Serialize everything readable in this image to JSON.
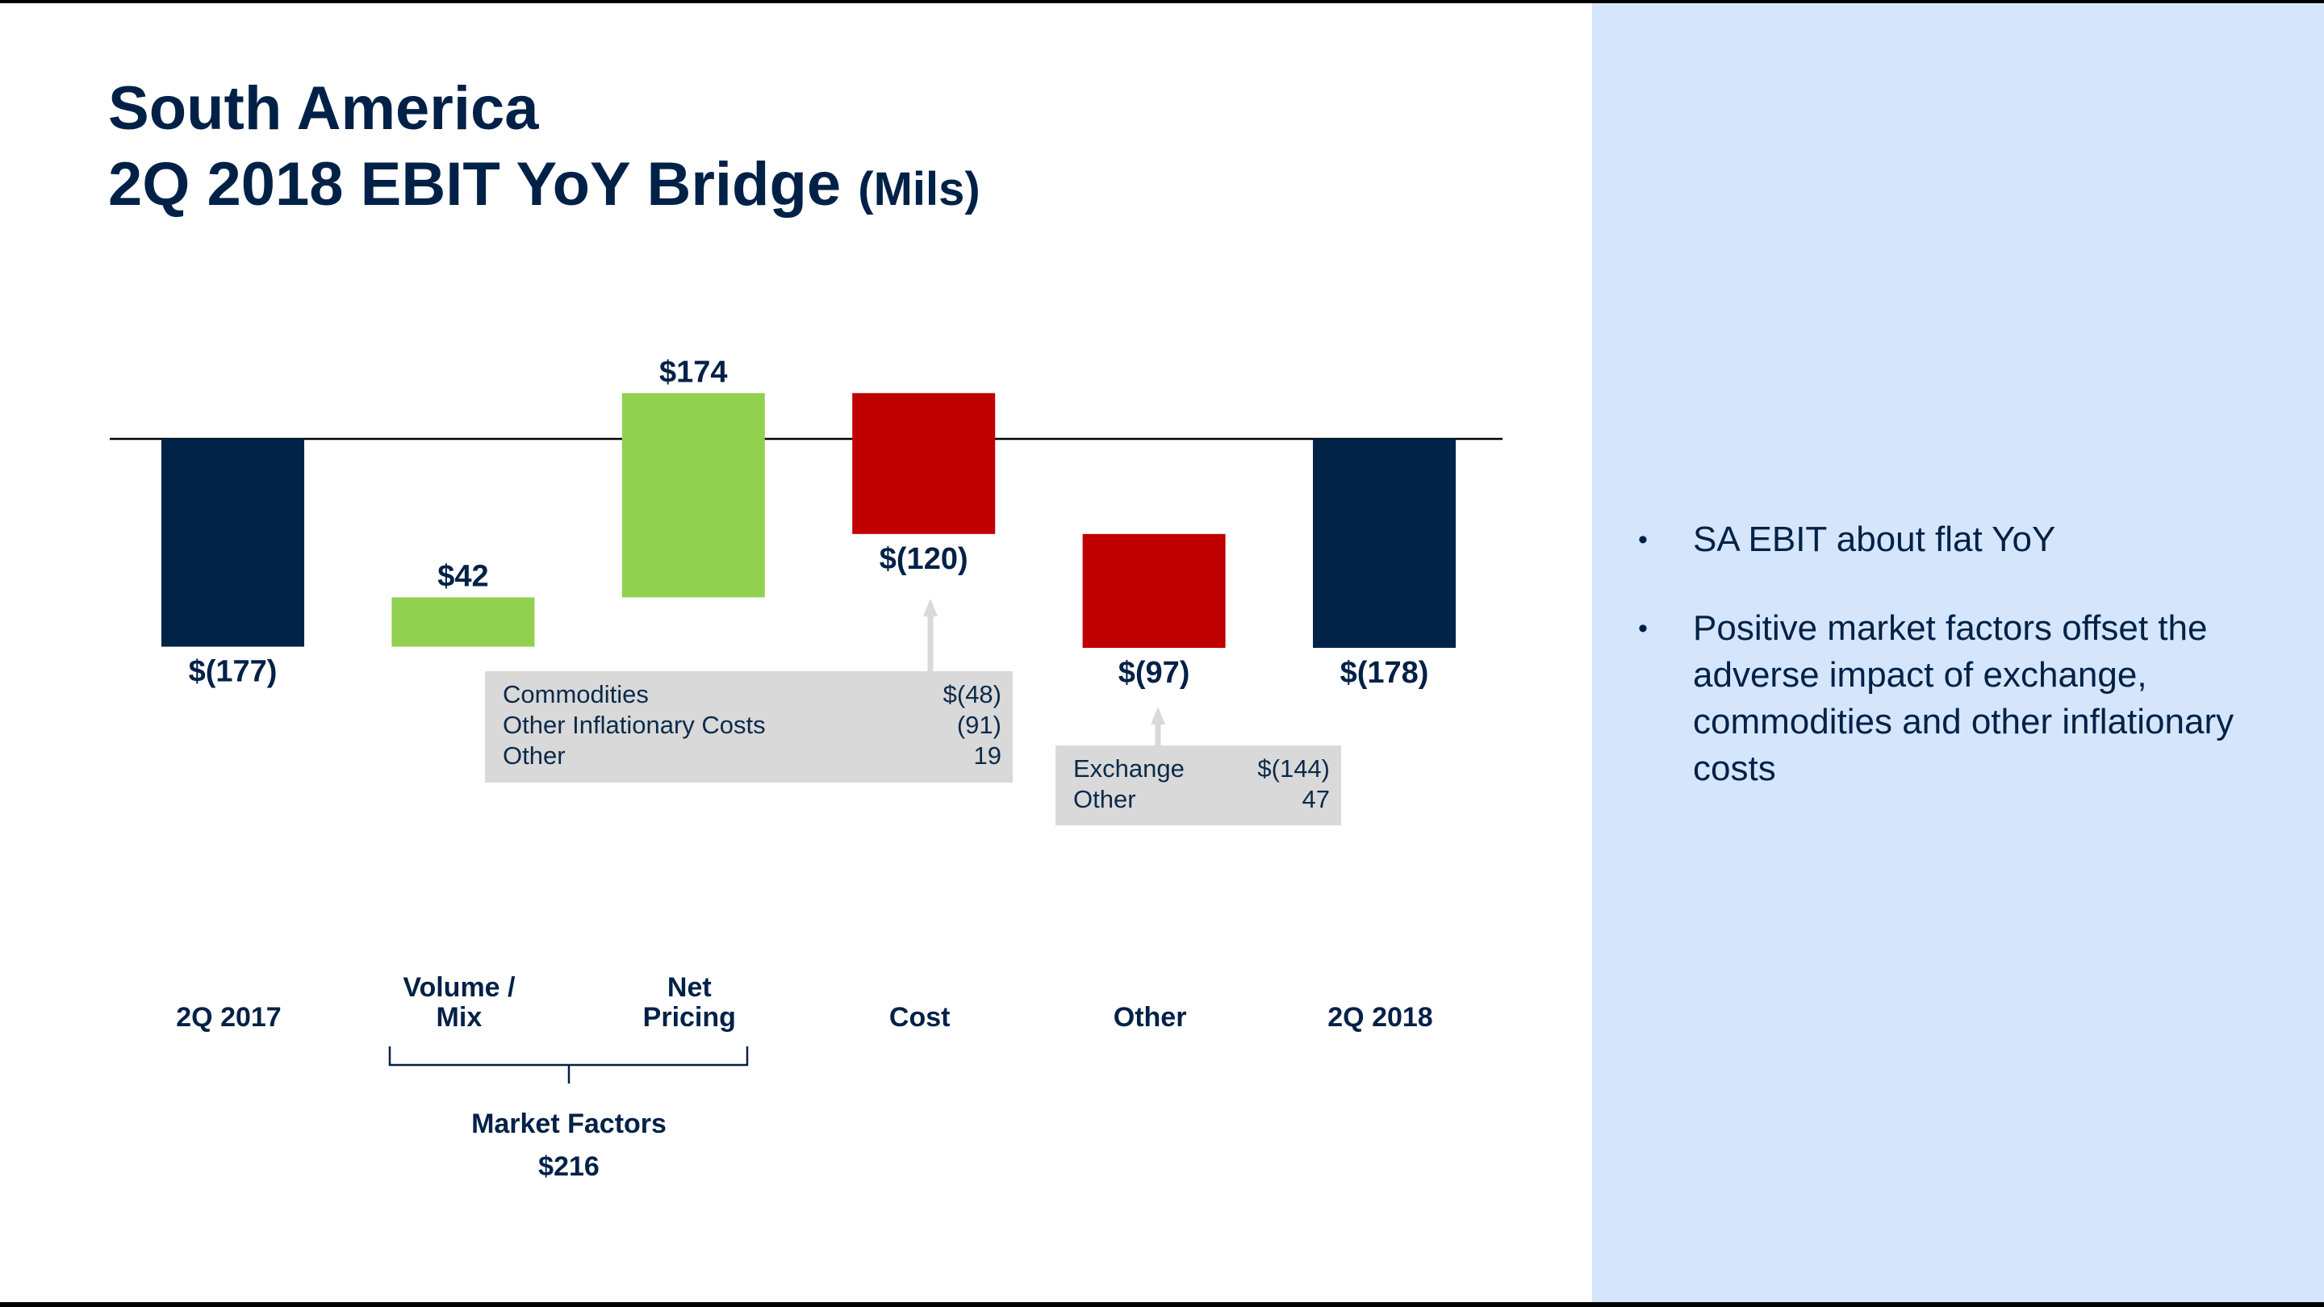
{
  "title": {
    "line1": "South America",
    "line2": "2Q 2018 EBIT YoY Bridge",
    "unit": "(Mils)"
  },
  "chart_data": {
    "type": "waterfall",
    "categories": [
      "2Q 2017",
      "Volume / Mix",
      "Net Pricing",
      "Cost",
      "Other",
      "2Q 2018"
    ],
    "values": [
      -177,
      42,
      174,
      -120,
      -97,
      -178
    ],
    "kinds": [
      "total",
      "delta",
      "delta",
      "delta",
      "delta",
      "total"
    ],
    "data_labels": [
      "$(177)",
      "$42",
      "$174",
      "$(120)",
      "$(97)",
      "$(178)"
    ],
    "colors": {
      "total": "#002347",
      "increase": "#92d050",
      "decrease": "#c00000"
    },
    "group": {
      "label": "Market Factors",
      "value": "$216",
      "members": [
        "Volume / Mix",
        "Net Pricing"
      ]
    },
    "callouts": [
      {
        "category": "Cost",
        "rows": [
          {
            "label": "Commodities",
            "value": "$(48)"
          },
          {
            "label": "Other Inflationary Costs",
            "value": "(91)"
          },
          {
            "label": "Other",
            "value": "19"
          }
        ]
      },
      {
        "category": "Other",
        "rows": [
          {
            "label": "Exchange",
            "value": "$(144)"
          },
          {
            "label": "Other",
            "value": "47"
          }
        ]
      }
    ]
  },
  "bullets": [
    "SA EBIT about flat YoY",
    "Positive market factors offset the adverse impact of exchange, commodities and other inflationary costs"
  ]
}
